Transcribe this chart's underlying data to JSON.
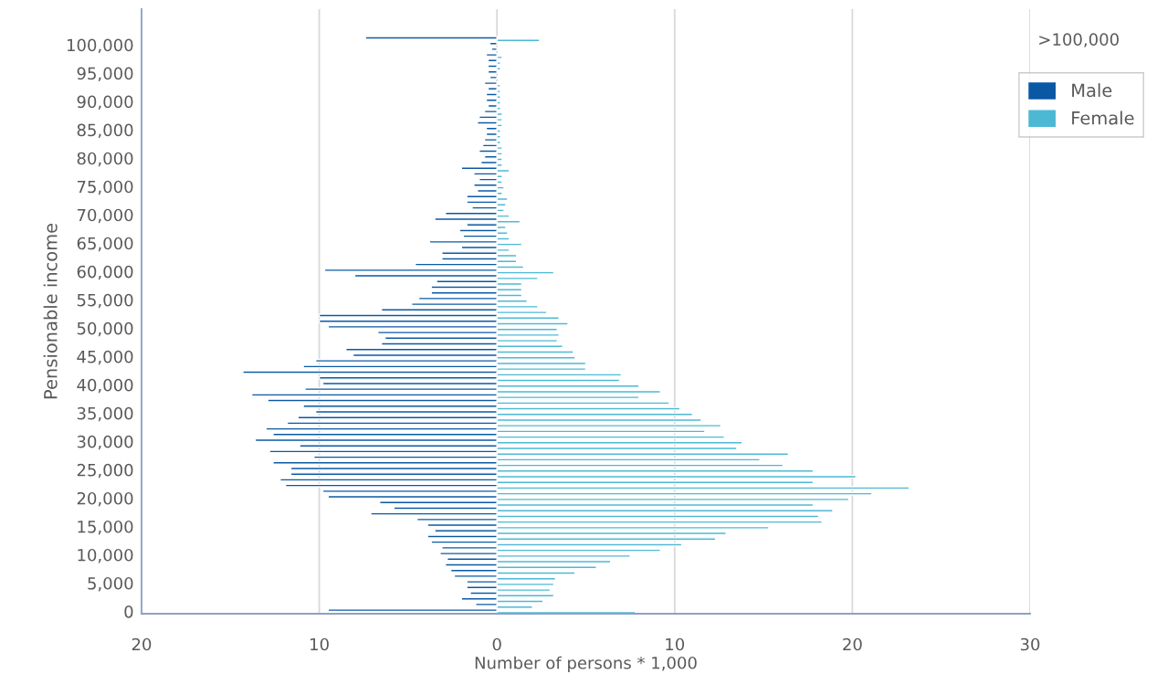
{
  "chart_data": {
    "type": "bar",
    "orientation": "horizontal",
    "xlabel": "Number of persons * 1,000",
    "ylabel": "Pensionable income",
    "categories": [
      ">100,000",
      "100,000",
      null,
      null,
      null,
      null,
      "95,000",
      null,
      null,
      null,
      null,
      "90,000",
      null,
      null,
      null,
      null,
      "85,000",
      null,
      null,
      null,
      null,
      "80,000",
      null,
      null,
      null,
      null,
      "75,000",
      null,
      null,
      null,
      null,
      "70,000",
      null,
      null,
      null,
      null,
      "65,000",
      null,
      null,
      null,
      null,
      "60,000",
      null,
      null,
      null,
      null,
      "55,000",
      null,
      null,
      null,
      null,
      "50,000",
      null,
      null,
      null,
      null,
      "45,000",
      null,
      null,
      null,
      null,
      "40,000",
      null,
      null,
      null,
      null,
      "35,000",
      null,
      null,
      null,
      null,
      "30,000",
      null,
      null,
      null,
      null,
      "25,000",
      null,
      null,
      null,
      null,
      "20,000",
      null,
      null,
      null,
      null,
      "15,000",
      null,
      null,
      null,
      null,
      "10,000",
      null,
      null,
      null,
      null,
      "5,000",
      null,
      null,
      null,
      null,
      "0"
    ],
    "series": [
      {
        "name": "Male",
        "color": "#0a58a4",
        "values": [
          -7.4,
          -0.4,
          -0.3,
          -0.6,
          -0.5,
          -0.5,
          -0.5,
          -0.4,
          -0.7,
          -0.5,
          -0.6,
          -0.6,
          -0.5,
          -0.7,
          -1.0,
          -1.1,
          -0.6,
          -0.6,
          -0.7,
          -0.8,
          -1.0,
          -0.7,
          -0.9,
          -2.0,
          -1.3,
          -1.0,
          -1.3,
          -1.1,
          -1.7,
          -1.7,
          -1.4,
          -2.9,
          -3.5,
          -1.7,
          -2.1,
          -1.9,
          -3.8,
          -2.0,
          -3.1,
          -3.1,
          -4.6,
          -9.7,
          -8.0,
          -3.4,
          -3.7,
          -3.7,
          -4.4,
          -4.8,
          -6.5,
          -10.0,
          -10.0,
          -9.5,
          -6.7,
          -6.3,
          -6.5,
          -8.5,
          -8.1,
          -10.2,
          -10.9,
          -14.3,
          -10.0,
          -9.8,
          -10.8,
          -13.8,
          -12.9,
          -10.9,
          -10.2,
          -11.2,
          -11.8,
          -13.0,
          -12.6,
          -13.6,
          -11.1,
          -12.8,
          -10.3,
          -12.6,
          -11.6,
          -11.6,
          -12.2,
          -11.9,
          -9.8,
          -9.5,
          -6.6,
          -5.8,
          -7.1,
          -4.5,
          -3.9,
          -3.5,
          -3.9,
          -3.7,
          -3.1,
          -3.2,
          -2.8,
          -2.9,
          -2.6,
          -2.4,
          -1.7,
          -1.7,
          -1.5,
          -2.0,
          -1.2,
          -9.5
        ]
      },
      {
        "name": "Female",
        "color": "#4db8d4",
        "values": [
          2.4,
          null,
          null,
          0.3,
          0.2,
          0.2,
          null,
          null,
          0.2,
          0.2,
          0.2,
          0.2,
          0.2,
          0.3,
          0.3,
          0.3,
          0.2,
          0.2,
          0.2,
          0.3,
          0.3,
          0.3,
          0.3,
          0.7,
          0.3,
          0.3,
          0.4,
          0.3,
          0.6,
          0.5,
          0.4,
          0.7,
          1.3,
          0.5,
          0.6,
          0.7,
          1.4,
          0.7,
          1.1,
          1.1,
          1.5,
          3.2,
          2.3,
          1.4,
          1.4,
          1.4,
          1.7,
          2.3,
          2.8,
          3.5,
          4.0,
          3.4,
          3.5,
          3.4,
          3.7,
          4.3,
          4.4,
          5.0,
          5.0,
          7.0,
          6.9,
          8.0,
          9.2,
          8.0,
          9.7,
          10.3,
          11.0,
          11.5,
          12.6,
          11.7,
          12.8,
          13.8,
          13.5,
          16.4,
          14.8,
          16.1,
          17.8,
          20.2,
          17.8,
          23.2,
          21.1,
          19.8,
          17.8,
          18.9,
          18.1,
          18.3,
          15.3,
          12.9,
          12.3,
          10.4,
          9.2,
          7.5,
          6.4,
          5.6,
          4.4,
          3.3,
          3.2,
          3.0,
          3.2,
          2.6,
          2.0,
          7.8
        ]
      }
    ],
    "xlim": [
      -20,
      30
    ],
    "xticks": [
      {
        "value": -20,
        "label": "20"
      },
      {
        "value": -10,
        "label": "10"
      },
      0,
      10,
      20,
      30
    ],
    "grid": "x",
    "legend": "top right"
  }
}
